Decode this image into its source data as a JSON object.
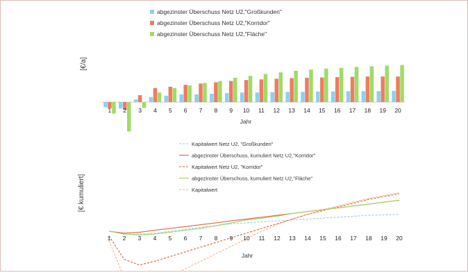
{
  "chart_data": [
    {
      "type": "bar",
      "ylabel": "[€/a]",
      "xlabel": "Jahr",
      "categories": [
        "1",
        "2",
        "3",
        "4",
        "5",
        "6",
        "7",
        "8",
        "9",
        "10",
        "11",
        "12",
        "13",
        "14",
        "15",
        "16",
        "17",
        "18",
        "19",
        "20"
      ],
      "ylim": [
        -55,
        75
      ],
      "legend_position": "top-center",
      "series": [
        {
          "name": "abgezinster Überschuss Netz U2,\"Großkunden\"",
          "color": "#8ecfef",
          "values": [
            -8,
            -10,
            4,
            8,
            10,
            12,
            12,
            13,
            14,
            15,
            15,
            15.5,
            16,
            16,
            16.5,
            16.5,
            17,
            17,
            17,
            17.5
          ]
        },
        {
          "name": "abgezinster Überschuss Netz U2,\"Korridor\"",
          "color": "#ee7c5e",
          "values": [
            -10,
            -12,
            11,
            22,
            24,
            27,
            29,
            31,
            33,
            34.5,
            35.5,
            36.5,
            37.5,
            38,
            38.5,
            39,
            39.5,
            40,
            40,
            40
          ]
        },
        {
          "name": "abgezinster Überschuss Netz U2,\"Fläche\"",
          "color": "#9fdc66",
          "values": [
            -18,
            -46,
            -9,
            15,
            22,
            26,
            30,
            33,
            38,
            41,
            44,
            46.5,
            49,
            51,
            52.5,
            53.5,
            55,
            56,
            57,
            58
          ]
        }
      ]
    },
    {
      "type": "line",
      "ylabel": "[€ kumuliert]",
      "xlabel": "Jahr",
      "x": [
        1,
        2,
        3,
        4,
        5,
        6,
        7,
        8,
        9,
        10,
        11,
        12,
        13,
        14,
        15,
        16,
        17,
        18,
        19,
        20
      ],
      "ylim": [
        -70,
        50
      ],
      "legend_position": "top-center",
      "series": [
        {
          "name": "Kapitalwert Netz U2, \"Großkunden\"",
          "color": "#9cc8e8",
          "dash": "dashed",
          "values": [
            0,
            -3,
            -3,
            -2,
            0,
            2,
            4,
            6,
            8,
            9,
            10,
            11,
            12,
            13,
            14,
            15,
            16,
            17,
            17.5,
            18
          ]
        },
        {
          "name": "abgezinster Überschuss, kumuliert Netz U2,\"Korridor\"",
          "color": "#e8623e",
          "dash": "solid",
          "values": [
            0,
            -2,
            -1,
            1,
            3,
            5,
            7,
            9,
            11,
            13,
            15,
            17,
            19,
            21,
            23,
            25,
            27,
            29,
            31,
            33
          ]
        },
        {
          "name": "Kapitalwert Netz U2, \"Korridor\"",
          "color": "#e05a2c",
          "dash": "dashed",
          "values": [
            -5,
            -30,
            -36,
            -32,
            -27,
            -22,
            -17,
            -12,
            -7,
            -2,
            3,
            8,
            13,
            18,
            22,
            26,
            30,
            34,
            37,
            40
          ]
        },
        {
          "name": "abgezinster Überschuss, kumuliert Netz U2,\"Fläche\"",
          "color": "#9ed45e",
          "dash": "solid",
          "values": [
            0,
            -3,
            -4,
            -3,
            -1,
            1,
            3,
            6,
            9,
            12,
            14,
            16,
            19,
            21,
            23,
            25,
            27,
            29,
            31,
            33
          ]
        },
        {
          "name": "Kapitalwert",
          "color": "#f2b183",
          "dash": "dashed",
          "values": [
            -10,
            -50,
            -60,
            -55,
            -48,
            -40,
            -32,
            -24,
            -16,
            -8,
            0,
            7,
            13,
            18,
            23,
            27,
            31,
            35,
            38,
            41
          ]
        }
      ]
    }
  ]
}
